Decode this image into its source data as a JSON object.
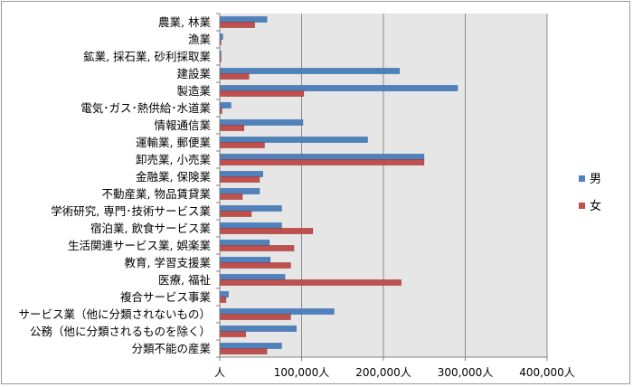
{
  "chart_data": {
    "type": "bar",
    "orientation": "horizontal",
    "categories": [
      "農業, 林業",
      "漁業",
      "鉱業, 採石業, 砂利採取業",
      "建設業",
      "製造業",
      "電気･ガス･熱供給･水道業",
      "情報通信業",
      "運輸業, 郵便業",
      "卸売業, 小売業",
      "金融業, 保険業",
      "不動産業, 物品賃貸業",
      "学術研究, 専門･技術サービス業",
      "宿泊業, 飲食サービス業",
      "生活関連サービス業, 娯楽業",
      "教育, 学習支援業",
      "医療, 福祉",
      "複合サービス事業",
      "サービス業（他に分類されないもの）",
      "公務（他に分類されるものを除く）",
      "分類不能の産業"
    ],
    "series": [
      {
        "name": "男",
        "color": "#4f81bd",
        "values": [
          57000,
          3000,
          1000,
          219000,
          290000,
          13000,
          101000,
          180000,
          249000,
          52000,
          48000,
          75000,
          75000,
          60000,
          61000,
          79000,
          10000,
          139000,
          93000,
          75000
        ]
      },
      {
        "name": "女",
        "color": "#c0504d",
        "values": [
          42000,
          1000,
          500,
          35000,
          102000,
          2000,
          29000,
          54000,
          249000,
          48000,
          27000,
          38000,
          113000,
          90000,
          86000,
          221000,
          7000,
          86000,
          31000,
          57000
        ]
      }
    ],
    "xaxis": {
      "min": 0,
      "max": 400000,
      "ticks": [
        0,
        100000,
        200000,
        300000,
        400000
      ],
      "tick_labels": [
        "人",
        "100,000人",
        "200,000人",
        "300,000人",
        "400,000人"
      ]
    },
    "plot_background": "#e6e6e6",
    "gridlines": true,
    "legend": {
      "placement": "right",
      "entries": [
        "男",
        "女"
      ]
    }
  }
}
